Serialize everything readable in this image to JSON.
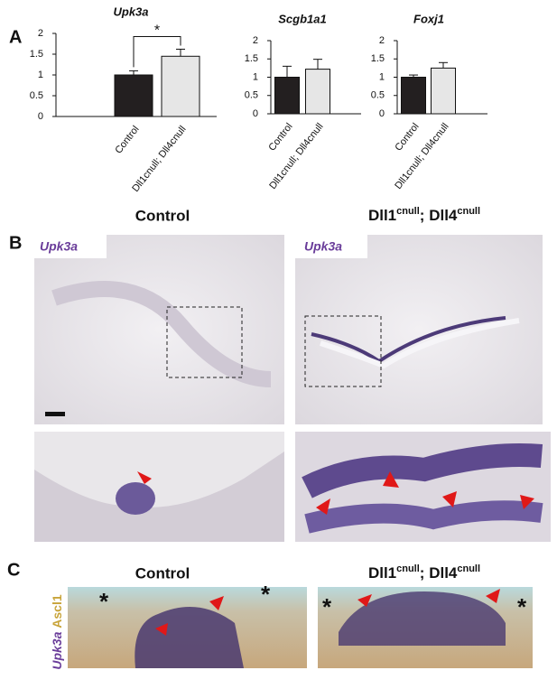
{
  "panel_labels": {
    "a": "A",
    "b": "B",
    "c": "C"
  },
  "chart_data": [
    {
      "type": "bar",
      "title": "Upk3a",
      "categories": [
        "Control",
        "Dll1cnull; Dll4cnull"
      ],
      "values": [
        1.0,
        1.45
      ],
      "errors": [
        0.1,
        0.17
      ],
      "colors": [
        "#231f20",
        "#e6e6e6"
      ],
      "ylim": [
        0,
        2
      ],
      "yticks": [
        0,
        0.5,
        1,
        1.5,
        2
      ],
      "significance": "*"
    },
    {
      "type": "bar",
      "title": "Scgb1a1",
      "categories": [
        "Control",
        "Dll1cnull; Dll4cnull"
      ],
      "values": [
        1.0,
        1.22
      ],
      "errors": [
        0.3,
        0.27
      ],
      "colors": [
        "#231f20",
        "#e6e6e6"
      ],
      "ylim": [
        0,
        2
      ],
      "yticks": [
        0,
        0.5,
        1,
        1.5,
        2
      ]
    },
    {
      "type": "bar",
      "title": "Foxj1",
      "categories": [
        "Control",
        "Dll1cnull; Dll4cnull"
      ],
      "values": [
        1.0,
        1.25
      ],
      "errors": [
        0.06,
        0.15
      ],
      "colors": [
        "#231f20",
        "#e6e6e6"
      ],
      "ylim": [
        0,
        2
      ],
      "yticks": [
        0,
        0.5,
        1,
        1.5,
        2
      ]
    }
  ],
  "control_title": "Control",
  "genotype": {
    "gene1": "Dll1",
    "sup1": "cnull",
    "sep": "; ",
    "gene2": "Dll4",
    "sup2": "cnull"
  },
  "panel_b": {
    "stain_labels": [
      "Upk3a",
      "Upk3a"
    ]
  },
  "panel_c": {
    "stain": "Upk3a",
    "marker": "Ascl1",
    "asterisks": [
      "*",
      "*",
      "*",
      "*"
    ]
  }
}
